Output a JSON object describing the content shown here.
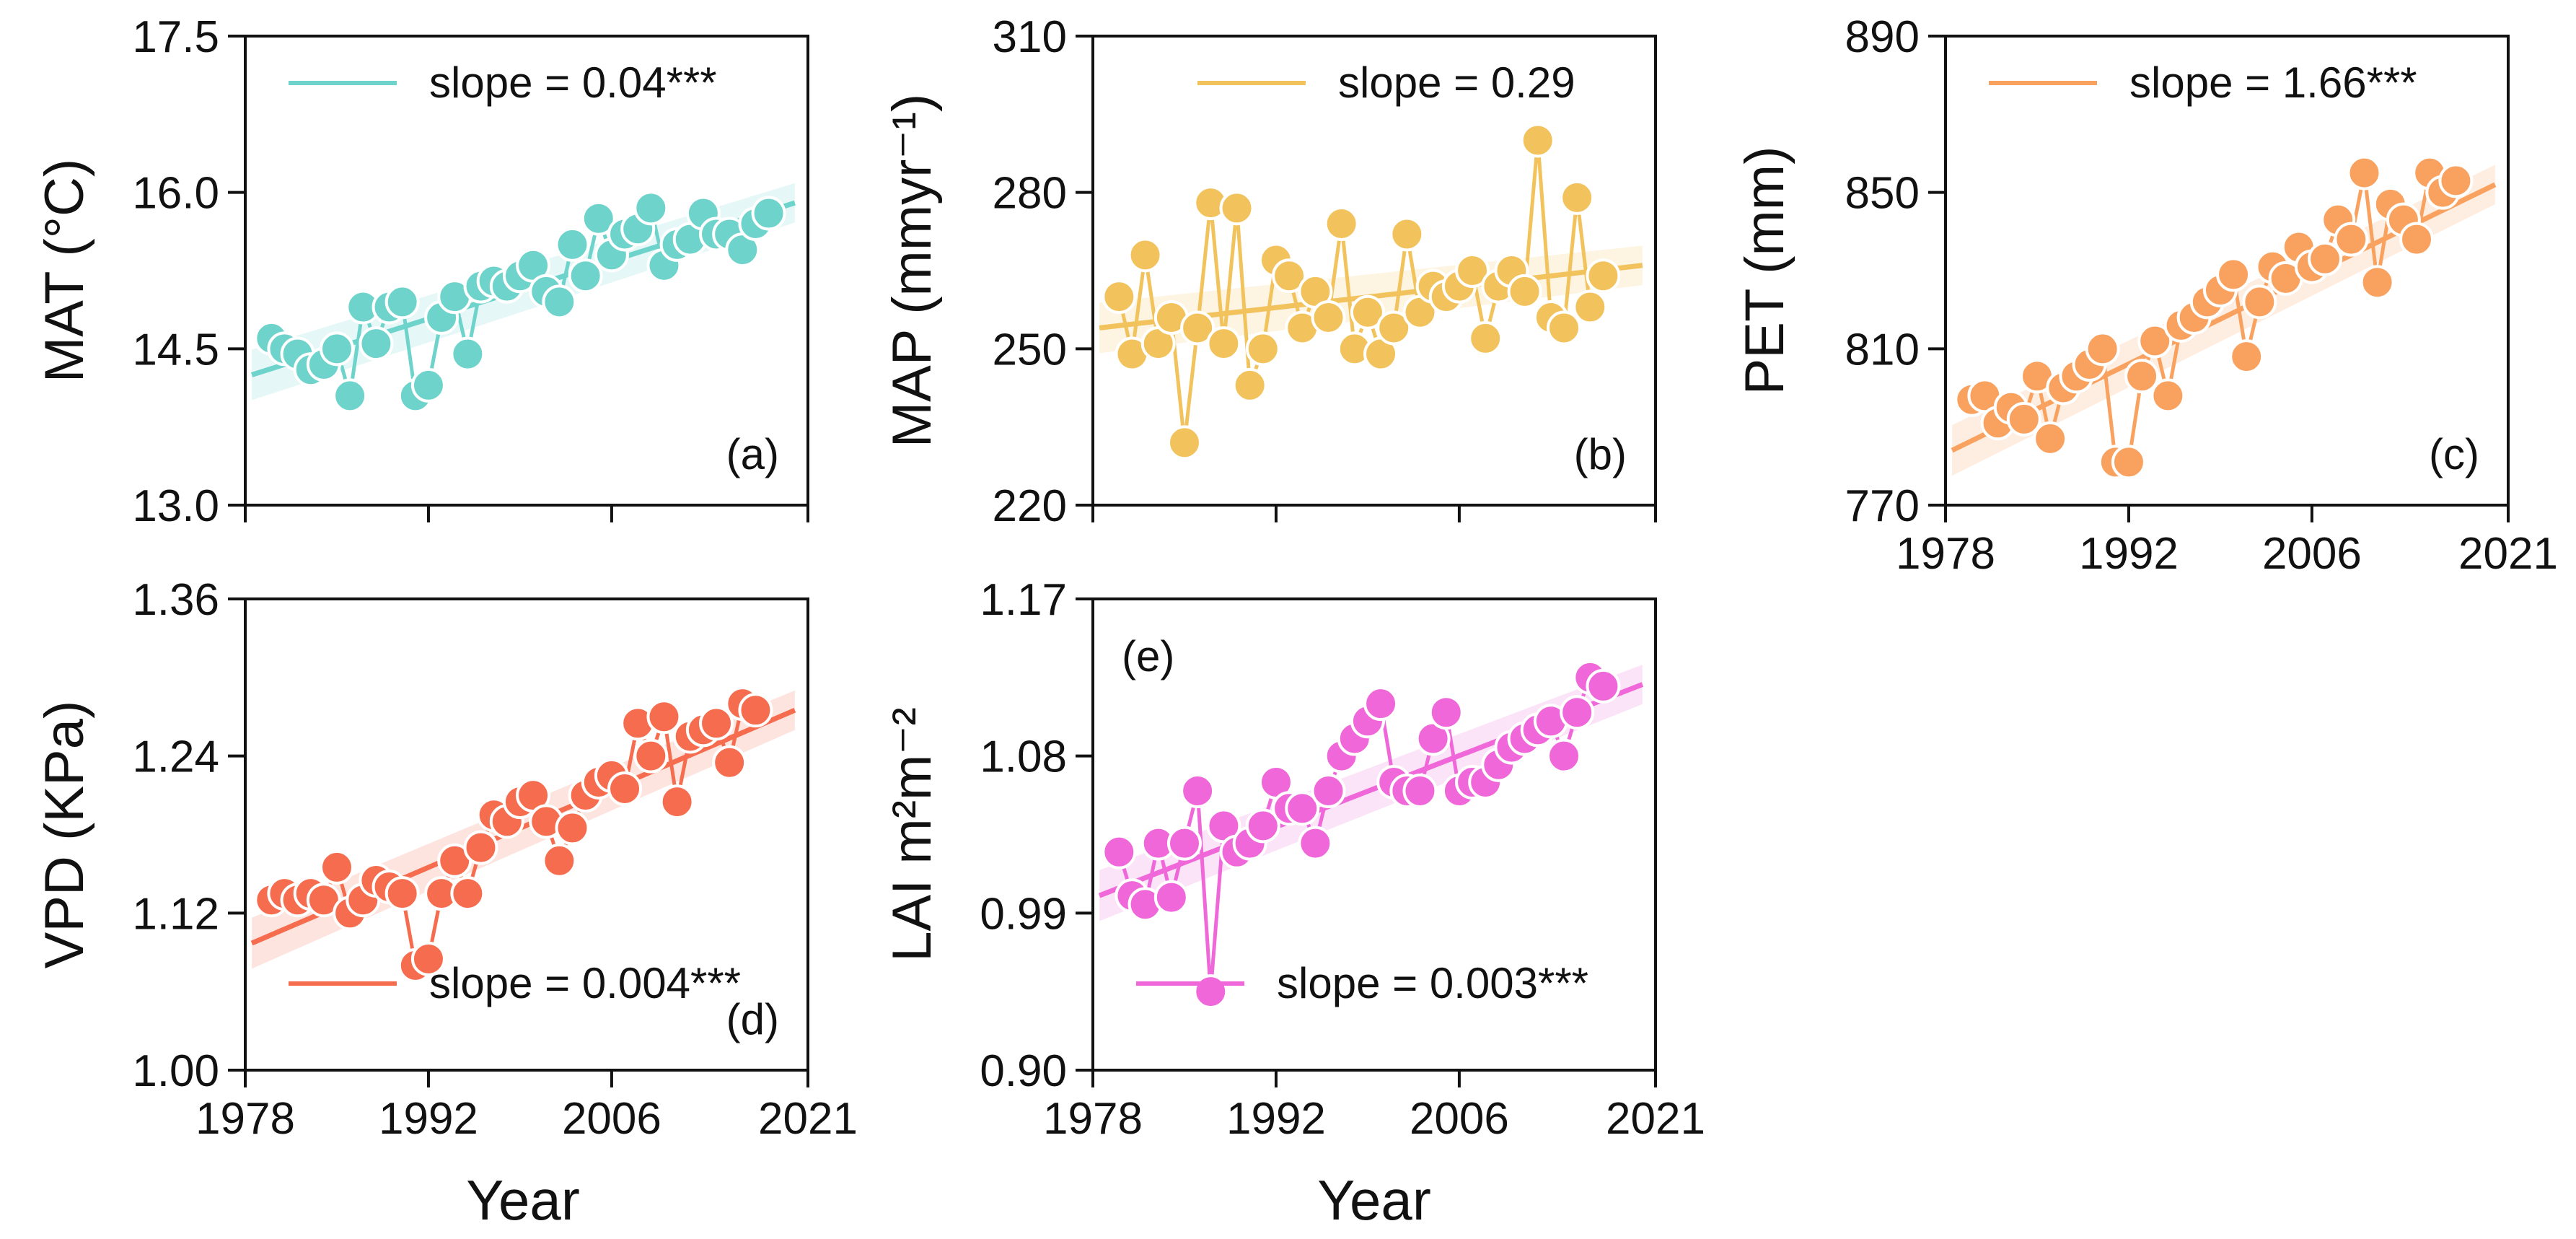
{
  "figure": {
    "xlabel": "Year"
  },
  "chart_data": [
    {
      "id": "a",
      "type": "line",
      "panel_label": "(a)",
      "ylabel": "MAT (°C)",
      "xlabel": "",
      "ylim": [
        13.0,
        17.5
      ],
      "yticks": [
        13.0,
        14.5,
        16.0,
        17.5
      ],
      "ytick_labels": [
        "13.0",
        "14.5",
        "16.0",
        "17.5"
      ],
      "xlim": [
        1978,
        2021
      ],
      "xticks": [
        1978,
        1992,
        2006,
        2021
      ],
      "xtick_labels": [],
      "color": "#6dd3cb",
      "legend": "slope = 0.04***",
      "legend_position": "top",
      "label_position": "bottom-right",
      "trend": {
        "start": [
          1978.5,
          14.25
        ],
        "end": [
          2020,
          15.9
        ]
      },
      "series": [
        {
          "name": "MAT",
          "x": [
            1980,
            1981,
            1982,
            1983,
            1984,
            1985,
            1986,
            1987,
            1988,
            1989,
            1990,
            1991,
            1992,
            1993,
            1994,
            1995,
            1996,
            1997,
            1998,
            1999,
            2000,
            2001,
            2002,
            2003,
            2004,
            2005,
            2006,
            2007,
            2008,
            2009,
            2010,
            2011,
            2012,
            2013,
            2014,
            2015,
            2016,
            2017,
            2018
          ],
          "y": [
            14.6,
            14.5,
            14.45,
            14.3,
            14.35,
            14.5,
            14.05,
            14.9,
            14.55,
            14.9,
            14.95,
            14.05,
            14.15,
            14.8,
            15.0,
            14.45,
            15.1,
            15.15,
            15.1,
            15.2,
            15.3,
            15.05,
            14.95,
            15.5,
            15.2,
            15.75,
            15.4,
            15.6,
            15.65,
            15.85,
            15.3,
            15.5,
            15.55,
            15.8,
            15.6,
            15.6,
            15.45,
            15.7,
            15.8
          ]
        }
      ]
    },
    {
      "id": "b",
      "type": "line",
      "panel_label": "(b)",
      "ylabel": "MAP (mmyr⁻¹)",
      "xlabel": "",
      "ylim": [
        220,
        310
      ],
      "yticks": [
        220,
        250,
        280,
        310
      ],
      "ytick_labels": [
        "220",
        "250",
        "280",
        "310"
      ],
      "xlim": [
        1978,
        2021
      ],
      "xticks": [
        1978,
        1992,
        2006,
        2021
      ],
      "xtick_labels": [],
      "color": "#f2c35c",
      "legend": "slope = 0.29",
      "legend_position": "top",
      "label_position": "bottom-right",
      "trend": {
        "start": [
          1978.5,
          254
        ],
        "end": [
          2020,
          266
        ]
      },
      "series": [
        {
          "name": "MAP",
          "x": [
            1980,
            1981,
            1982,
            1983,
            1984,
            1985,
            1986,
            1987,
            1988,
            1989,
            1990,
            1991,
            1992,
            1993,
            1994,
            1995,
            1996,
            1997,
            1998,
            1999,
            2000,
            2001,
            2002,
            2003,
            2004,
            2005,
            2006,
            2007,
            2008,
            2009,
            2010,
            2011,
            2012,
            2013,
            2014,
            2015,
            2016,
            2017
          ],
          "y": [
            260,
            249,
            268,
            251,
            256,
            232,
            254,
            278,
            251,
            277,
            243,
            250,
            267,
            264,
            254,
            261,
            256,
            274,
            250,
            257,
            249,
            254,
            272,
            257,
            262,
            260,
            262,
            265,
            252,
            262,
            265,
            261,
            290,
            256,
            254,
            279,
            258,
            264
          ]
        }
      ]
    },
    {
      "id": "c",
      "type": "line",
      "panel_label": "(c)",
      "ylabel": "PET (mm)",
      "xlabel": "",
      "ylim": [
        770,
        890
      ],
      "yticks": [
        770,
        810,
        850,
        890
      ],
      "ytick_labels": [
        "770",
        "810",
        "850",
        "890"
      ],
      "xlim": [
        1978,
        2021
      ],
      "xticks": [
        1978,
        1992,
        2006,
        2021
      ],
      "xtick_labels": [
        "1978",
        "1992",
        "2006",
        "2021"
      ],
      "color": "#f9a25f",
      "legend": "slope = 1.66***",
      "legend_position": "top",
      "label_position": "bottom-right",
      "trend": {
        "start": [
          1978.5,
          784
        ],
        "end": [
          2020,
          852
        ]
      },
      "series": [
        {
          "name": "PET",
          "x": [
            1980,
            1981,
            1982,
            1983,
            1984,
            1985,
            1986,
            1987,
            1988,
            1989,
            1990,
            1991,
            1992,
            1993,
            1994,
            1995,
            1996,
            1997,
            1998,
            1999,
            2000,
            2001,
            2002,
            2003,
            2004,
            2005,
            2006,
            2007,
            2008,
            2009,
            2010,
            2011,
            2012,
            2013,
            2014,
            2015,
            2016,
            2017
          ],
          "y": [
            797,
            798,
            791,
            795,
            792,
            803,
            787,
            800,
            803,
            806,
            810,
            781,
            781,
            803,
            812,
            798,
            816,
            818,
            822,
            825,
            829,
            808,
            822,
            831,
            828,
            836,
            831,
            833,
            843,
            838,
            855,
            827,
            847,
            843,
            838,
            855,
            850,
            853
          ]
        }
      ]
    },
    {
      "id": "d",
      "type": "line",
      "panel_label": "(d)",
      "ylabel": "VPD (KPa)",
      "xlabel": "Year",
      "ylim": [
        1.0,
        1.36
      ],
      "yticks": [
        1.0,
        1.12,
        1.24,
        1.36
      ],
      "ytick_labels": [
        "1.00",
        "1.12",
        "1.24",
        "1.36"
      ],
      "xlim": [
        1978,
        2021
      ],
      "xticks": [
        1978,
        1992,
        2006,
        2021
      ],
      "xtick_labels": [
        "1978",
        "1992",
        "2006",
        "2021"
      ],
      "color": "#f56c4e",
      "legend": "slope = 0.004***",
      "legend_position": "bottom",
      "label_position": "bottom-right",
      "trend": {
        "start": [
          1978.5,
          1.097
        ],
        "end": [
          2020,
          1.275
        ]
      },
      "series": [
        {
          "name": "VPD",
          "x": [
            1980,
            1981,
            1982,
            1983,
            1984,
            1985,
            1986,
            1987,
            1988,
            1989,
            1990,
            1991,
            1992,
            1993,
            1994,
            1995,
            1996,
            1997,
            1998,
            1999,
            2000,
            2001,
            2002,
            2003,
            2004,
            2005,
            2006,
            2007,
            2008,
            2009,
            2010,
            2011,
            2012,
            2013,
            2014,
            2015,
            2016,
            2017
          ],
          "y": [
            1.13,
            1.135,
            1.13,
            1.135,
            1.13,
            1.155,
            1.12,
            1.13,
            1.145,
            1.14,
            1.135,
            1.08,
            1.085,
            1.135,
            1.16,
            1.135,
            1.17,
            1.195,
            1.19,
            1.205,
            1.21,
            1.19,
            1.16,
            1.185,
            1.21,
            1.22,
            1.225,
            1.215,
            1.265,
            1.24,
            1.27,
            1.205,
            1.255,
            1.26,
            1.265,
            1.235,
            1.28,
            1.275
          ]
        }
      ]
    },
    {
      "id": "e",
      "type": "line",
      "panel_label": "(e)",
      "ylabel": "LAI m²m⁻²",
      "xlabel": "Year",
      "ylim": [
        0.9,
        1.17
      ],
      "yticks": [
        0.9,
        0.99,
        1.08,
        1.17
      ],
      "ytick_labels": [
        "0.90",
        "0.99",
        "1.08",
        "1.17"
      ],
      "xlim": [
        1978,
        2021
      ],
      "xticks": [
        1978,
        1992,
        2006,
        2021
      ],
      "xtick_labels": [
        "1978",
        "1992",
        "2006",
        "2021"
      ],
      "color": "#ef67d8",
      "legend": "slope = 0.003***",
      "legend_position": "bottom",
      "label_position": "top-left",
      "trend": {
        "start": [
          1978.5,
          1.0
        ],
        "end": [
          2020,
          1.121
        ]
      },
      "series": [
        {
          "name": "LAI",
          "x": [
            1980,
            1981,
            1982,
            1983,
            1984,
            1985,
            1986,
            1987,
            1988,
            1989,
            1990,
            1991,
            1992,
            1993,
            1994,
            1995,
            1996,
            1997,
            1998,
            1999,
            2000,
            2001,
            2002,
            2003,
            2004,
            2005,
            2006,
            2007,
            2008,
            2009,
            2010,
            2011,
            2012,
            2013,
            2014,
            2015,
            2016,
            2017
          ],
          "y": [
            1.025,
            1.0,
            0.995,
            1.03,
            0.999,
            1.03,
            1.06,
            0.945,
            1.04,
            1.025,
            1.03,
            1.04,
            1.065,
            1.05,
            1.05,
            1.03,
            1.06,
            1.08,
            1.09,
            1.1,
            1.11,
            1.065,
            1.06,
            1.06,
            1.09,
            1.105,
            1.06,
            1.065,
            1.065,
            1.075,
            1.085,
            1.09,
            1.095,
            1.1,
            1.08,
            1.105,
            1.125,
            1.12
          ]
        }
      ]
    }
  ]
}
